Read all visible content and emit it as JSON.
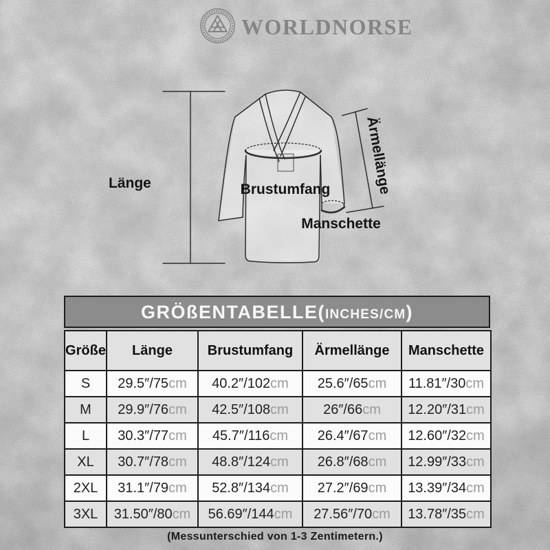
{
  "brand": {
    "name": "WORLDNORSE",
    "logo_icon": "valknut-emblem-icon"
  },
  "diagram": {
    "labels": {
      "length": "Länge",
      "chest": "Brustumfang",
      "sleeve": "Ärmellänge",
      "cuff": "Manschette"
    }
  },
  "table": {
    "title_main": "GRÖßENTABELLE(",
    "title_unit": "INCHES/CM",
    "title_close": ")",
    "columns": [
      "Größe",
      "Länge",
      "Brustumfang",
      "Ärmellänge",
      "Manschette"
    ],
    "rows": [
      {
        "size": "S",
        "cells": [
          {
            "v": "29.5″/75",
            "u": "cm"
          },
          {
            "v": "40.2″/102",
            "u": "cm"
          },
          {
            "v": "25.6″/65",
            "u": "cm"
          },
          {
            "v": "11.81″/30",
            "u": "cm"
          }
        ]
      },
      {
        "size": "M",
        "cells": [
          {
            "v": "29.9″/76",
            "u": "cm"
          },
          {
            "v": "42.5″/108",
            "u": "cm"
          },
          {
            "v": "26″/66",
            "u": "cm"
          },
          {
            "v": "12.20″/31",
            "u": "cm"
          }
        ]
      },
      {
        "size": "L",
        "cells": [
          {
            "v": "30.3″/77",
            "u": "cm"
          },
          {
            "v": "45.7″/116",
            "u": "cm"
          },
          {
            "v": "26.4″/67",
            "u": "cm"
          },
          {
            "v": "12.60″/32",
            "u": "cm"
          }
        ]
      },
      {
        "size": "XL",
        "cells": [
          {
            "v": "30.7″/78",
            "u": "cm"
          },
          {
            "v": "48.8″/124",
            "u": "cm"
          },
          {
            "v": "26.8″/68",
            "u": "cm"
          },
          {
            "v": "12.99″/33",
            "u": "cm"
          }
        ]
      },
      {
        "size": "2XL",
        "cells": [
          {
            "v": "31.1″/79",
            "u": "cm"
          },
          {
            "v": "52.8″/134",
            "u": "cm"
          },
          {
            "v": "27.2″/69",
            "u": "cm"
          },
          {
            "v": "13.39″/34",
            "u": "cm"
          }
        ]
      },
      {
        "size": "3XL",
        "cells": [
          {
            "v": "31.50″/80",
            "u": "cm"
          },
          {
            "v": "56.69″/144",
            "u": "cm"
          },
          {
            "v": "27.56″/70",
            "u": "cm"
          },
          {
            "v": "13.78″/35",
            "u": "cm"
          }
        ]
      }
    ]
  },
  "note": "(Messunterschied von 1-3 Zentimetern.)",
  "colors": {
    "page-bg": "#c6c6c6",
    "bar-bg": "#8c8c8c",
    "title-text": "#f7f7f7",
    "header-row": "#e1e1e1",
    "row-main": "#fbfbfb",
    "row-alt": "#e1e1e1",
    "border": "#1d1d1d",
    "ink": "#1f1f1f",
    "unit": "#9a9a9a",
    "brand": "#858585"
  }
}
